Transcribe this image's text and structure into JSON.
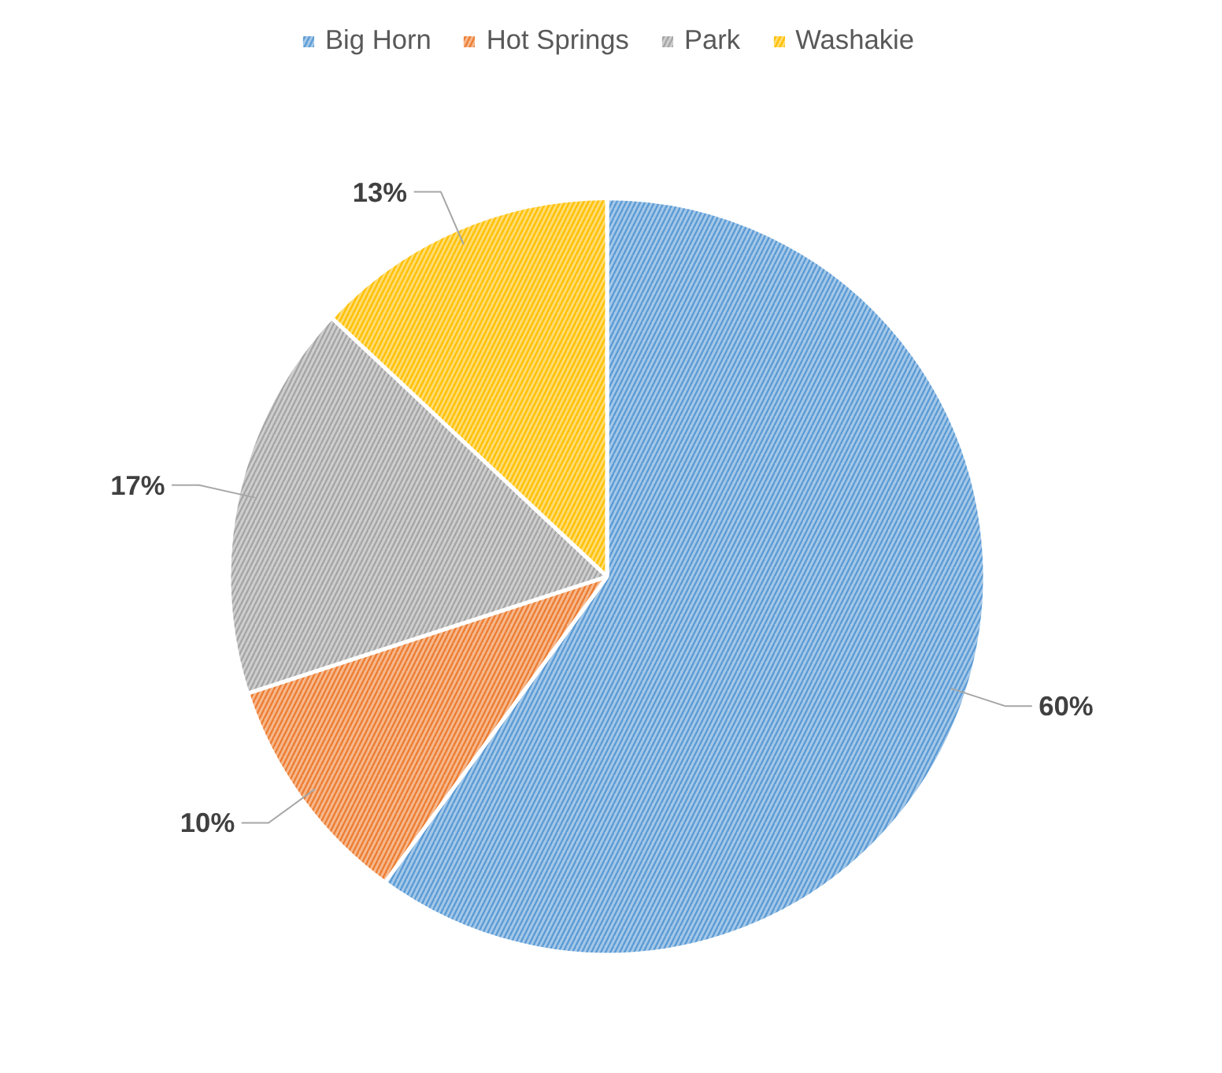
{
  "chart_data": {
    "type": "pie",
    "categories": [
      "Big Horn",
      "Hot Springs",
      "Park",
      "Washakie"
    ],
    "values": [
      60,
      10,
      17,
      13
    ],
    "colors": [
      "#5b9bd5",
      "#ed7d31",
      "#a5a5a5",
      "#ffc000"
    ],
    "value_labels": [
      "60%",
      "10%",
      "17%",
      "13%"
    ],
    "legend": "top"
  }
}
